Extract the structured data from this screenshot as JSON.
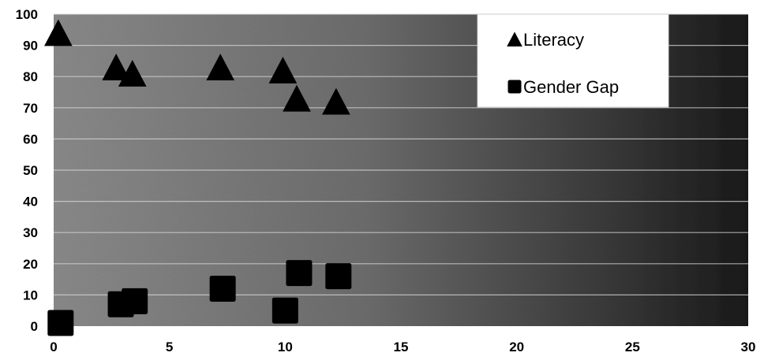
{
  "chart_data": {
    "type": "scatter",
    "title": "",
    "xlabel": "",
    "ylabel": "",
    "xlim": [
      0,
      30
    ],
    "ylim": [
      0,
      100
    ],
    "x_ticks": [
      0,
      5,
      10,
      15,
      20,
      25,
      30
    ],
    "y_ticks": [
      0,
      10,
      20,
      30,
      40,
      50,
      60,
      70,
      80,
      90,
      100
    ],
    "grid": "horizontal",
    "legend_position": "top-right",
    "series": [
      {
        "name": "Literacy",
        "marker": "triangle",
        "color": "#000000",
        "points": [
          {
            "x": 0.2,
            "y": 94
          },
          {
            "x": 2.7,
            "y": 83
          },
          {
            "x": 3.4,
            "y": 81
          },
          {
            "x": 7.2,
            "y": 83
          },
          {
            "x": 9.9,
            "y": 82
          },
          {
            "x": 10.5,
            "y": 73
          },
          {
            "x": 12.2,
            "y": 72
          }
        ]
      },
      {
        "name": "Gender Gap",
        "marker": "square",
        "color": "#000000",
        "points": [
          {
            "x": 0.3,
            "y": 1
          },
          {
            "x": 2.9,
            "y": 7
          },
          {
            "x": 3.5,
            "y": 8
          },
          {
            "x": 7.3,
            "y": 12
          },
          {
            "x": 10.0,
            "y": 5
          },
          {
            "x": 10.6,
            "y": 17
          },
          {
            "x": 12.3,
            "y": 16
          }
        ]
      }
    ]
  }
}
